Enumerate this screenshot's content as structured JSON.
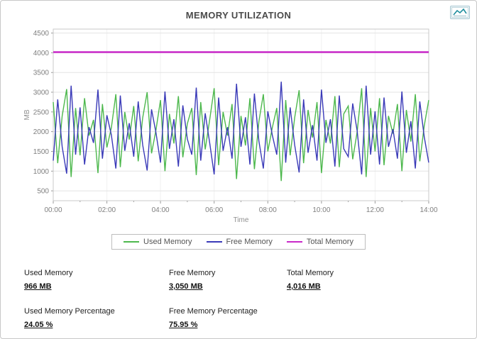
{
  "chart_data": {
    "type": "line",
    "title": "MEMORY UTILIZATION",
    "xlabel": "Time",
    "ylabel": "MB",
    "x_start_hours": 0,
    "x_end_hours": 14,
    "x_tick_labels": [
      "00:00",
      "02:00",
      "04:00",
      "06:00",
      "08:00",
      "10:00",
      "12:00",
      "14:00"
    ],
    "y_ticks": [
      500,
      1000,
      1500,
      2000,
      2500,
      3000,
      3500,
      4000,
      4500
    ],
    "ylim": [
      250,
      4600
    ],
    "grid": "horizontal",
    "legend_position": "bottom",
    "series": [
      {
        "name": "Used Memory",
        "color": "#4db84d",
        "values": [
          2750,
          1200,
          2400,
          3080,
          850,
          2600,
          1400,
          2850,
          1900,
          2300,
          950,
          2700,
          1600,
          2100,
          2950,
          1100,
          2500,
          1800,
          2650,
          1250,
          2350,
          3000,
          1450,
          2050,
          2800,
          1000,
          2450,
          1700,
          2900,
          1350,
          2200,
          2600,
          900,
          2750,
          1550,
          2300,
          3100,
          1150,
          2500,
          1900,
          2700,
          800,
          2400,
          1650,
          2850,
          1050,
          2250,
          2950,
          1500,
          2100,
          2600,
          750,
          2800,
          1400,
          2350,
          3050,
          1200,
          2550,
          1850,
          2750,
          950,
          2300,
          1700,
          2900,
          1100,
          2450,
          2650,
          1300,
          2000,
          3100,
          850,
          2600,
          1500,
          2850,
          1150,
          2400,
          1950,
          2700,
          1000,
          2550,
          1750,
          2950,
          1250,
          2150,
          2800
        ]
      },
      {
        "name": "Free Memory",
        "color": "#3a3ab8",
        "values": [
          1266,
          2816,
          1616,
          936,
          3166,
          1416,
          2616,
          1166,
          2116,
          1716,
          3066,
          1316,
          2416,
          1916,
          1066,
          2916,
          1516,
          2216,
          1366,
          2766,
          1666,
          1016,
          2566,
          1966,
          1216,
          3016,
          1566,
          2316,
          1116,
          2666,
          1816,
          1416,
          3116,
          1266,
          2466,
          1716,
          916,
          2866,
          1516,
          2116,
          1316,
          3216,
          1616,
          2366,
          1166,
          2966,
          1766,
          1066,
          2516,
          1916,
          1416,
          3266,
          1216,
          2616,
          1666,
          966,
          2816,
          1466,
          2166,
          1266,
          3066,
          1716,
          2316,
          1116,
          2916,
          1566,
          1366,
          2716,
          2016,
          916,
          3166,
          1416,
          2516,
          1166,
          2866,
          1616,
          2066,
          1316,
          3016,
          1466,
          2266,
          1066,
          2766,
          1866,
          1216
        ]
      },
      {
        "name": "Total Memory",
        "color": "#c929c9",
        "constant": 4016
      }
    ]
  },
  "stats": {
    "used": {
      "label": "Used Memory",
      "value": "966 MB"
    },
    "free": {
      "label": "Free Memory",
      "value": "3,050 MB"
    },
    "total": {
      "label": "Total Memory",
      "value": "4,016 MB"
    },
    "used_pct": {
      "label": "Used Memory Percentage",
      "value": "24.05 %"
    },
    "free_pct": {
      "label": "Free Memory Percentage",
      "value": "75.95 %"
    }
  }
}
